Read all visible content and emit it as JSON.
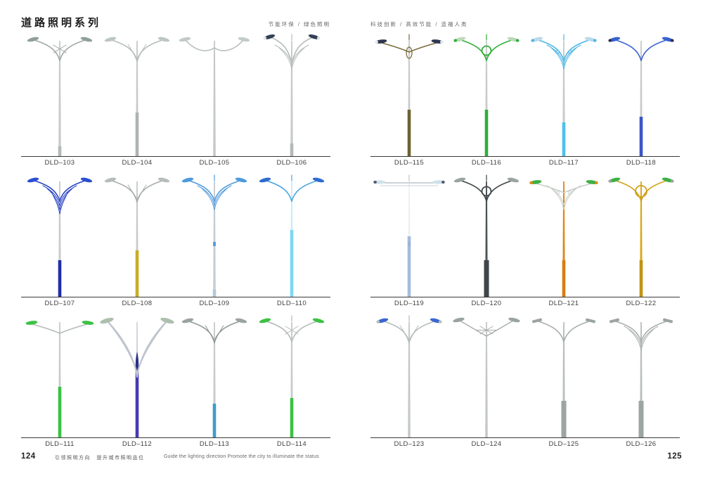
{
  "header": {
    "title": "道路照明系列"
  },
  "pages": [
    {
      "page_number": "124",
      "tagline": "节能环保 / 绿色照明",
      "models": [
        [
          {
            "label": "DLD–103",
            "arms": "v",
            "orn": "cross",
            "head": "cobra",
            "armc": "#9fa8a5",
            "headc": "#8fa096",
            "polec": "#c7cbca",
            "basec": "#b3bab8",
            "baseh": 14
          },
          {
            "label": "DLD–104",
            "arms": "v",
            "orn": "tri",
            "head": "cobra",
            "armc": "#b5bcba",
            "headc": "#bdc6c0",
            "polec": "#c7cbca",
            "basec": "#adb4b1",
            "baseh": 62
          },
          {
            "label": "DLD–105",
            "arms": "sweep",
            "orn": "none",
            "head": "cobra",
            "armc": "#b7bfbd",
            "headc": "#c3cbc6",
            "polec": "#c4c9c7"
          },
          {
            "label": "DLD–106",
            "arms": "y",
            "orn": "fan2",
            "fin": true,
            "head": "cobra",
            "armc": "#b5bcba",
            "headc": "#333e57",
            "tipc": "#dfe5e2",
            "polec": "#c7cbca",
            "basec": "#b3bab8",
            "baseh": 18
          }
        ],
        [
          {
            "label": "DLD–107",
            "arms": "v",
            "orn": "fan3",
            "head": "cobra",
            "armc": "#2944c6",
            "headc": "#2a4ed2",
            "polec": "#c7cbca",
            "basec": "#202fa6",
            "baseh": 52
          },
          {
            "label": "DLD–108",
            "arms": "v",
            "orn": "tri",
            "head": "cobra",
            "armc": "#a6adaa",
            "headc": "#b6bdb8",
            "polec": "#c7cbca",
            "basec": "#c8ac29",
            "baseh": 66
          },
          {
            "label": "DLD–109",
            "arms": "v",
            "orn": "fan2",
            "fin": true,
            "head": "cobra",
            "armc": "#4e9adc",
            "headc": "#4e9adc",
            "polec": "#c5ccd2",
            "basec": "#b4c9da",
            "baseh": 10,
            "accent": "#4e9adc"
          },
          {
            "label": "DLD–110",
            "arms": "v",
            "orn": "none",
            "fin": "#49a8e0",
            "head": "cobra",
            "armc": "#49a8e0",
            "headc": "#2f6bd2",
            "polec": "#c9ecf7",
            "basec": "#7ed7f2",
            "baseh": 95
          }
        ],
        [
          {
            "label": "DLD–111",
            "arms": "horiz",
            "orn": "none",
            "head": "cobra",
            "armc": "#b4bbb9",
            "headc": "#3cc144",
            "polec": "#c7cbca",
            "basec": "#3cc144",
            "baseh": 72
          },
          {
            "label": "DLD–112",
            "arms": "swoop",
            "orn": "none",
            "head": "cobra",
            "armc": "#bfc5cf",
            "headc": "#adbfad",
            "polec": "#d3d5dd",
            "basec": "#463cb2",
            "baseh": 95,
            "leaf": "#2a2f86"
          },
          {
            "label": "DLD–113",
            "arms": "v",
            "orn": "tri",
            "head": "cobra",
            "armc": "#8f9896",
            "headc": "#9aa3a0",
            "polec": "#c7cbca",
            "basec": "#3f9cc7",
            "baseh": 48
          },
          {
            "label": "DLD–114",
            "arms": "v",
            "orn": "cross",
            "fin": true,
            "head": "cobra",
            "armc": "#b4bbb9",
            "headc": "#3cc144",
            "polec": "#c7cbca",
            "basec": "#3cc144",
            "baseh": 56
          }
        ]
      ]
    },
    {
      "page_number": "125",
      "tagline": "科技创新 / 高效节能 / 造福人类",
      "models": [
        [
          {
            "label": "DLD–115",
            "arms": "horiz",
            "orn": "oval",
            "fin": "#7a6c3c",
            "head": "cobra",
            "armc": "#7a6c3c",
            "headc": "#2d374f",
            "tipc": "#e2e6ea",
            "polec": "#c7cbca",
            "basec": "#6e6233",
            "baseh": 66
          },
          {
            "label": "DLD–116",
            "arms": "v",
            "orn": "circle",
            "fin": "#2fae3a",
            "head": "cobra",
            "armc": "#2fae3a",
            "headc": "#bdd9b9",
            "tipc": "#2fae3a",
            "polec": "#c7cbca",
            "basec": "#2fae3a",
            "baseh": 66
          },
          {
            "label": "DLD–117",
            "arms": "v",
            "orn": "scroll",
            "fin": "#4ab5e5",
            "head": "cobra",
            "armc": "#4ab5e5",
            "headc": "#bcd9ea",
            "tipc": "#4ab5e5",
            "polec": "#c7cbca",
            "basec": "#4ec1eb",
            "baseh": 48
          },
          {
            "label": "DLD–118",
            "arms": "v",
            "orn": "none",
            "head": "cobra",
            "armc": "#3a62cf",
            "headc": "#3a62cf",
            "tipc": "#27304d",
            "polec": "#c7cbca",
            "basec": "#3a55c6",
            "baseh": 56
          }
        ],
        [
          {
            "label": "DLD–119",
            "arms": "bar",
            "orn": "none",
            "fin": "#b8c4cc",
            "head": "cobra",
            "armc": "#b8c4cc",
            "headc": "#cfe2ea",
            "tipc": "#50616e",
            "polec": "#edf0f3",
            "basec": "#a4bbdc",
            "baseh": 86,
            "accent": "#9ab3d8"
          },
          {
            "label": "DLD–120",
            "arms": "v",
            "orn": "circle",
            "fin": "#3c4446",
            "head": "cobra",
            "armc": "#3c4446",
            "headc": "#9aa4a2",
            "polec": "#4a5254",
            "basec": "#3e4648",
            "baseh": 52,
            "wide": true
          },
          {
            "label": "DLD–121",
            "arms": "horiz",
            "orn": "scroll",
            "head": "cobra",
            "armc": "#c9cfc9",
            "headc": "#3cb044",
            "tipc": "#e08818",
            "polec": "#e08818",
            "basec": "#d87c10",
            "baseh": 52
          },
          {
            "label": "DLD–122",
            "arms": "v",
            "orn": "circle",
            "ornr": 8,
            "head": "cobra",
            "armc": "#d0a018",
            "headc": "#3cb044",
            "tipc": "#9aa39a",
            "polec": "#d8a818",
            "basec": "#c2930e",
            "baseh": 52
          }
        ],
        [
          {
            "label": "DLD–123",
            "arms": "v",
            "orn": "tri",
            "fin": true,
            "head": "cobra",
            "armc": "#b5bcba",
            "headc": "#3a66d2",
            "tipc": "#b5bcba",
            "polec": "#c4c9c7"
          },
          {
            "label": "DLD–124",
            "arms": "straight",
            "orn": "cross",
            "head": "cobra",
            "armc": "#a7afac",
            "headc": "#9aa3a0",
            "polec": "#c4c9c7"
          },
          {
            "label": "DLD–125",
            "arms": "v",
            "orn": "none",
            "head": "box",
            "armc": "#a7afac",
            "headc": "#9aa4a2",
            "polec": "#b9bfbd",
            "basec": "#9ca5a3",
            "baseh": 52,
            "wide": true
          },
          {
            "label": "DLD–126",
            "arms": "v",
            "orn": "fan2",
            "head": "box",
            "armc": "#a7afac",
            "headc": "#9aa4a2",
            "polec": "#b9bfbd",
            "basec": "#9ca5a3",
            "baseh": 52,
            "wide": true
          }
        ]
      ]
    }
  ],
  "footer": {
    "slogan_cn": "引领照明方向　提升城市照明品位",
    "slogan_en": "Guide the lighting direction Promote the city to illuminate the status"
  }
}
